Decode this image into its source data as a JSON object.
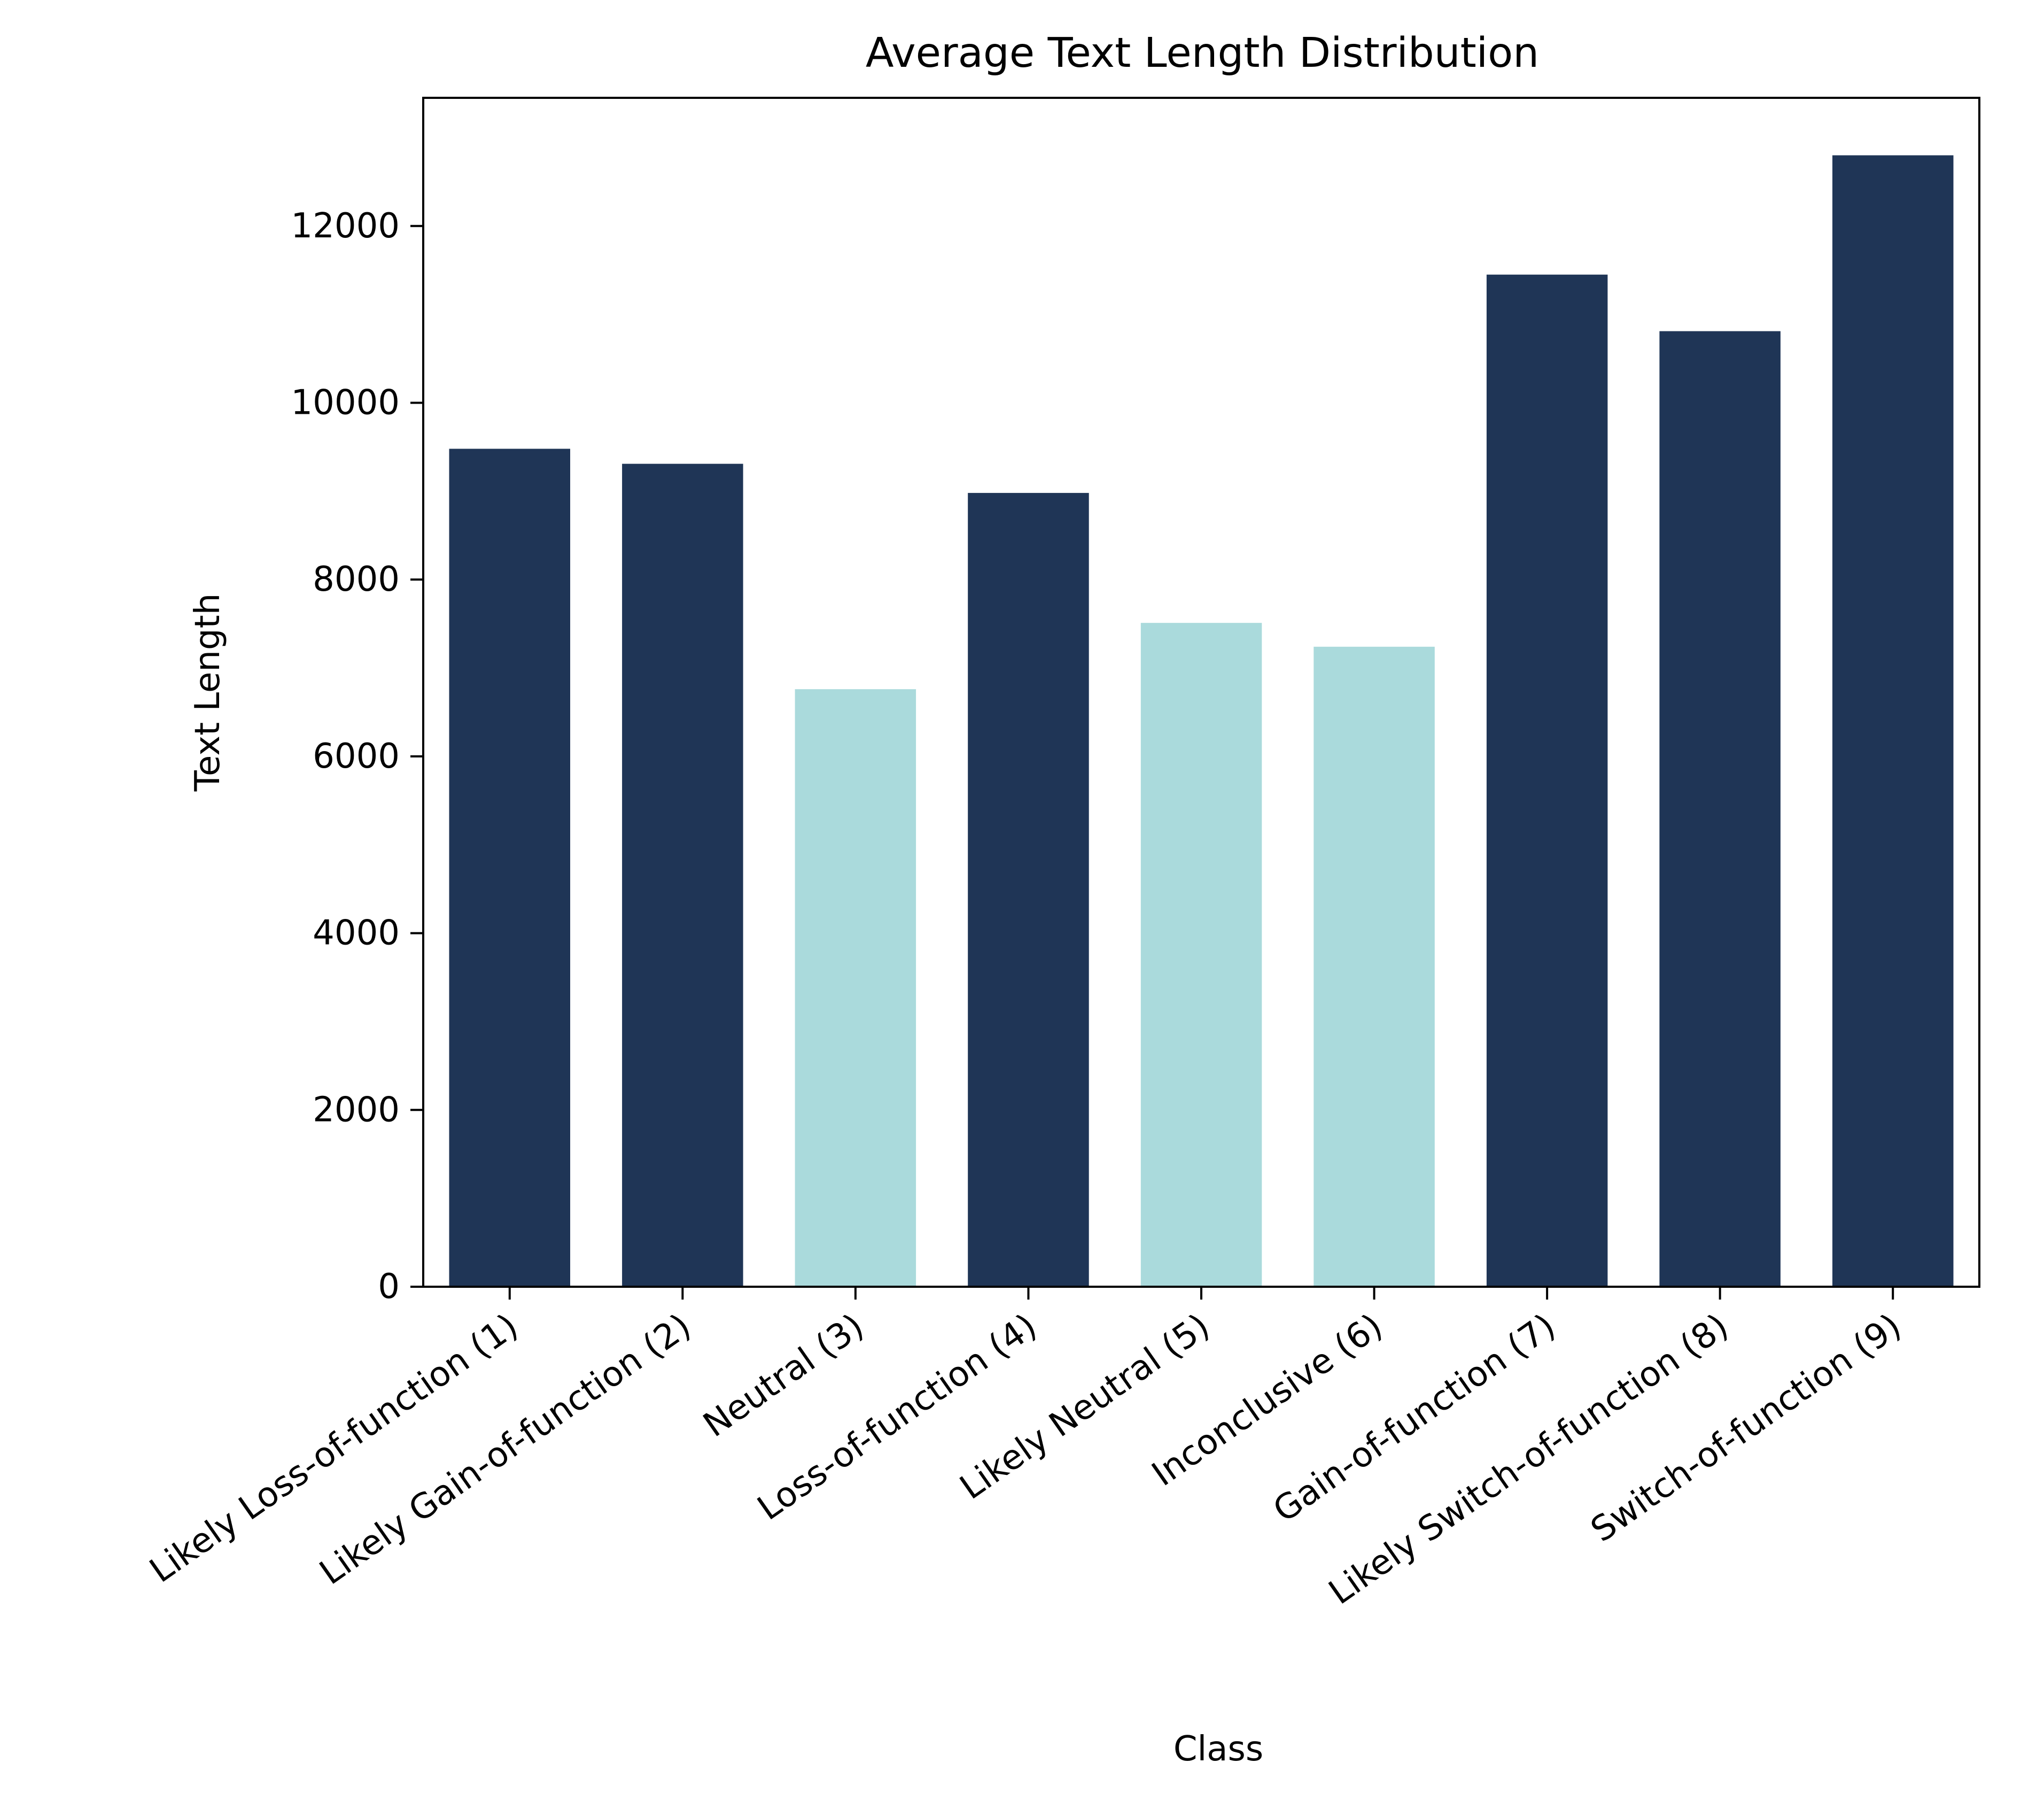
{
  "chart_data": {
    "type": "bar",
    "title": "Average Text Length Distribution",
    "xlabel": "Class",
    "ylabel": "Text Length",
    "categories": [
      "Likely Loss-of-function (1)",
      "Likely Gain-of-function (2)",
      "Neutral (3)",
      "Loss-of-function (4)",
      "Likely Neutral (5)",
      "Inconclusive (6)",
      "Gain-of-function (7)",
      "Likely Switch-of-function (8)",
      "Switch-of-function (9)"
    ],
    "values": [
      9480,
      9310,
      6760,
      8980,
      7510,
      7240,
      11450,
      10810,
      12800
    ],
    "bar_colors": [
      "#1f3556",
      "#1f3556",
      "#aadadc",
      "#1f3556",
      "#aadadc",
      "#aadadc",
      "#1f3556",
      "#1f3556",
      "#1f3556"
    ],
    "yticks": [
      0,
      2000,
      4000,
      6000,
      8000,
      10000,
      12000
    ],
    "ylim": [
      0,
      13450
    ],
    "grid": false,
    "legend": "none"
  }
}
